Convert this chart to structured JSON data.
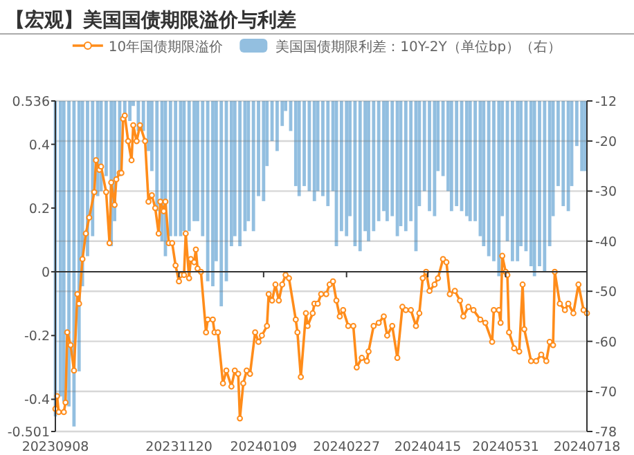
{
  "chart_data": {
    "type": "line",
    "title": "【宏观】美国国债期限溢价与利差",
    "legend": "top",
    "grid": "y2",
    "marker": "circle",
    "line_style": "solid",
    "xlim": [
      "2023-09-08",
      "2024-07-18"
    ],
    "xticks": [
      {
        "value": "2023-09-08",
        "label": "20230908"
      },
      {
        "value": "2023-11-20",
        "label": "20231120"
      },
      {
        "value": "2024-01-09",
        "label": "20240109"
      },
      {
        "value": "2024-02-27",
        "label": "20240227"
      },
      {
        "value": "2024-04-15",
        "label": "20240415"
      },
      {
        "value": "2024-05-31",
        "label": "20240531"
      },
      {
        "value": "2024-07-18",
        "label": "20240718"
      }
    ],
    "ylim": [
      -0.501,
      0.536
    ],
    "yticks": [
      0.536,
      0.4,
      0.2,
      0,
      -0.2,
      -0.4,
      -0.501
    ],
    "y2lim": [
      -78,
      -12
    ],
    "y2ticks": [
      -12,
      -20,
      -30,
      -40,
      -50,
      -60,
      -70,
      -78
    ],
    "series": [
      {
        "name": "10年国债期限溢价",
        "color": "#ff8c1a",
        "x": [
          "2023-09-08",
          "2023-09-09",
          "2023-09-10",
          "2023-09-13",
          "2023-09-14",
          "2023-09-15",
          "2023-09-17",
          "2023-09-19",
          "2023-09-21",
          "2023-09-22",
          "2023-09-24",
          "2023-09-26",
          "2023-09-28",
          "2023-10-01",
          "2023-10-02",
          "2023-10-04",
          "2023-10-05",
          "2023-10-08",
          "2023-10-10",
          "2023-10-11",
          "2023-10-13",
          "2023-10-14",
          "2023-10-16",
          "2023-10-17",
          "2023-10-18",
          "2023-10-19",
          "2023-10-21",
          "2023-10-23",
          "2023-10-24",
          "2023-10-26",
          "2023-10-28",
          "2023-10-31",
          "2023-11-02",
          "2023-11-04",
          "2023-11-06",
          "2023-11-08",
          "2023-11-09",
          "2023-11-11",
          "2023-11-12",
          "2023-11-14",
          "2023-11-16",
          "2023-11-18",
          "2023-11-20",
          "2023-11-21",
          "2023-11-23",
          "2023-11-24",
          "2023-11-26",
          "2023-11-27",
          "2023-11-29",
          "2023-11-30",
          "2023-12-01",
          "2023-12-03",
          "2023-12-06",
          "2023-12-07",
          "2023-12-10",
          "2023-12-11",
          "2023-12-13",
          "2023-12-16",
          "2023-12-18",
          "2023-12-21",
          "2023-12-23",
          "2023-12-25",
          "2023-12-26",
          "2023-12-28",
          "2023-12-30",
          "2024-01-01",
          "2024-01-04",
          "2024-01-06",
          "2024-01-08",
          "2024-01-11",
          "2024-01-12",
          "2024-01-14",
          "2024-01-16",
          "2024-01-18",
          "2024-01-20",
          "2024-01-22",
          "2024-01-24",
          "2024-01-28",
          "2024-01-29",
          "2024-01-31",
          "2024-02-03",
          "2024-02-04",
          "2024-02-07",
          "2024-02-08",
          "2024-02-10",
          "2024-02-12",
          "2024-02-15",
          "2024-02-17",
          "2024-02-19",
          "2024-02-21",
          "2024-02-23",
          "2024-02-25",
          "2024-02-28",
          "2024-03-02",
          "2024-03-04",
          "2024-03-07",
          "2024-03-10",
          "2024-03-11",
          "2024-03-14",
          "2024-03-17",
          "2024-03-20",
          "2024-03-22",
          "2024-03-25",
          "2024-03-28",
          "2024-03-31",
          "2024-04-02",
          "2024-04-05",
          "2024-04-08",
          "2024-04-10",
          "2024-04-12",
          "2024-04-14",
          "2024-04-16",
          "2024-04-19",
          "2024-04-21",
          "2024-04-24",
          "2024-04-26",
          "2024-04-28",
          "2024-05-01",
          "2024-05-04",
          "2024-05-06",
          "2024-05-09",
          "2024-05-12",
          "2024-05-16",
          "2024-05-19",
          "2024-05-23",
          "2024-05-24",
          "2024-05-27",
          "2024-05-28",
          "2024-05-29",
          "2024-05-31",
          "2024-06-01",
          "2024-06-02",
          "2024-06-05",
          "2024-06-08",
          "2024-06-10",
          "2024-06-11",
          "2024-06-15",
          "2024-06-18",
          "2024-06-21",
          "2024-06-24",
          "2024-06-26",
          "2024-06-28",
          "2024-06-29",
          "2024-07-02",
          "2024-07-05",
          "2024-07-07",
          "2024-07-10",
          "2024-07-13",
          "2024-07-16",
          "2024-07-18"
        ],
        "values": [
          -0.43,
          -0.39,
          -0.44,
          -0.44,
          -0.41,
          -0.19,
          -0.23,
          -0.31,
          -0.07,
          -0.1,
          0.04,
          0.12,
          0.17,
          0.25,
          0.35,
          0.32,
          0.33,
          0.25,
          0.09,
          0.28,
          0.21,
          0.29,
          0.31,
          0.31,
          0.48,
          0.49,
          0.41,
          0.35,
          0.46,
          0.41,
          0.46,
          0.41,
          0.22,
          0.24,
          0.2,
          0.12,
          0.22,
          0.19,
          0.22,
          0.09,
          0.09,
          0.02,
          -0.03,
          -0.01,
          -0.01,
          0.12,
          -0.02,
          0.04,
          0.03,
          0.07,
          0.01,
          0.0,
          -0.19,
          -0.15,
          -0.15,
          -0.19,
          -0.19,
          -0.35,
          -0.31,
          -0.36,
          -0.31,
          -0.32,
          -0.46,
          -0.35,
          -0.31,
          -0.32,
          -0.19,
          -0.22,
          -0.2,
          -0.17,
          -0.07,
          -0.09,
          -0.04,
          -0.09,
          -0.04,
          -0.01,
          -0.02,
          -0.15,
          -0.19,
          -0.33,
          -0.13,
          -0.17,
          -0.13,
          -0.1,
          -0.1,
          -0.07,
          -0.07,
          -0.04,
          -0.03,
          -0.09,
          -0.14,
          -0.12,
          -0.17,
          -0.17,
          -0.3,
          -0.27,
          -0.28,
          -0.25,
          -0.17,
          -0.16,
          -0.14,
          -0.2,
          -0.17,
          -0.27,
          -0.11,
          -0.12,
          -0.12,
          -0.17,
          -0.13,
          -0.02,
          0.0,
          -0.06,
          -0.04,
          -0.02,
          0.04,
          0.03,
          -0.07,
          -0.06,
          -0.09,
          -0.14,
          -0.11,
          -0.12,
          -0.15,
          -0.16,
          -0.22,
          -0.12,
          -0.12,
          -0.16,
          0.05,
          0.0,
          -0.01,
          -0.19,
          -0.24,
          -0.25,
          -0.04,
          -0.18,
          -0.28,
          -0.28,
          -0.26,
          -0.28,
          -0.22,
          -0.23,
          0.0,
          -0.1,
          -0.12,
          -0.1,
          -0.13,
          -0.04,
          -0.12,
          -0.13
        ]
      },
      {
        "name": "美国国债期限利差：10Y-2Y（单位bp）（右）",
        "type": "bar",
        "axis": "y2",
        "color": "#93bfe0",
        "x": [
          "2023-09-08",
          "2023-09-11",
          "2023-09-13",
          "2023-09-16",
          "2023-09-19",
          "2023-09-22",
          "2023-09-24",
          "2023-09-27",
          "2023-09-30",
          "2023-10-03",
          "2023-10-05",
          "2023-10-08",
          "2023-10-11",
          "2023-10-13",
          "2023-10-16",
          "2023-10-19",
          "2023-10-22",
          "2023-10-24",
          "2023-10-27",
          "2023-10-30",
          "2023-11-02",
          "2023-11-04",
          "2023-11-07",
          "2023-11-10",
          "2023-11-12",
          "2023-11-15",
          "2023-11-18",
          "2023-11-21",
          "2023-11-23",
          "2023-11-26",
          "2023-11-29",
          "2023-12-01",
          "2023-12-04",
          "2023-12-07",
          "2023-12-10",
          "2023-12-12",
          "2023-12-15",
          "2023-12-18",
          "2023-12-21",
          "2023-12-23",
          "2023-12-26",
          "2023-12-29",
          "2023-12-31",
          "2024-01-03",
          "2024-01-06",
          "2024-01-09",
          "2024-01-11",
          "2024-01-14",
          "2024-01-17",
          "2024-01-20",
          "2024-01-22",
          "2024-01-25",
          "2024-01-28",
          "2024-01-30",
          "2024-02-02",
          "2024-02-05",
          "2024-02-08",
          "2024-02-10",
          "2024-02-13",
          "2024-02-16",
          "2024-02-19",
          "2024-02-21",
          "2024-02-24",
          "2024-02-27",
          "2024-02-29",
          "2024-03-03",
          "2024-03-06",
          "2024-03-09",
          "2024-03-11",
          "2024-03-14",
          "2024-03-17",
          "2024-03-20",
          "2024-03-22",
          "2024-03-25",
          "2024-03-28",
          "2024-03-30",
          "2024-04-02",
          "2024-04-05",
          "2024-04-08",
          "2024-04-10",
          "2024-04-13",
          "2024-04-16",
          "2024-04-19",
          "2024-04-21",
          "2024-04-24",
          "2024-04-27",
          "2024-04-29",
          "2024-05-02",
          "2024-05-05",
          "2024-05-08",
          "2024-05-10",
          "2024-05-13",
          "2024-05-16",
          "2024-05-18",
          "2024-05-21",
          "2024-05-24",
          "2024-05-27",
          "2024-05-29",
          "2024-06-01",
          "2024-06-04",
          "2024-06-07",
          "2024-06-09",
          "2024-06-12",
          "2024-06-15",
          "2024-06-17",
          "2024-06-20",
          "2024-06-23",
          "2024-06-26",
          "2024-06-28",
          "2024-07-01",
          "2024-07-04",
          "2024-07-07",
          "2024-07-09",
          "2024-07-12",
          "2024-07-15",
          "2024-07-17"
        ],
        "values": [
          -75,
          -71,
          -72,
          -73,
          -77,
          -66,
          -49,
          -43,
          -39,
          -31,
          -30,
          -27,
          -41,
          -36,
          -27,
          -15,
          -16,
          -13,
          -18,
          -18,
          -22,
          -26,
          -34,
          -40,
          -43,
          -39,
          -39,
          -39,
          -38,
          -38,
          -36,
          -36,
          -39,
          -48,
          -49,
          -44,
          -53,
          -48,
          -41,
          -39,
          -41,
          -38,
          -36,
          -38,
          -31,
          -32,
          -25,
          -20,
          -22,
          -17,
          -14,
          -18,
          -29,
          -31,
          -29,
          -30,
          -32,
          -30,
          -31,
          -33,
          -30,
          -41,
          -38,
          -39,
          -35,
          -41,
          -42,
          -38,
          -40,
          -38,
          -36,
          -34,
          -36,
          -35,
          -39,
          -37,
          -38,
          -36,
          -42,
          -33,
          -30,
          -34,
          -35,
          -26,
          -27,
          -30,
          -34,
          -33,
          -34,
          -35,
          -36,
          -36,
          -39,
          -41,
          -43,
          -44,
          -47,
          -35,
          -40,
          -44,
          -44,
          -41,
          -42,
          -45,
          -47,
          -45,
          -46,
          -41,
          -35,
          -29,
          -33,
          -34,
          -29,
          -21,
          -26,
          -26
        ]
      }
    ]
  }
}
